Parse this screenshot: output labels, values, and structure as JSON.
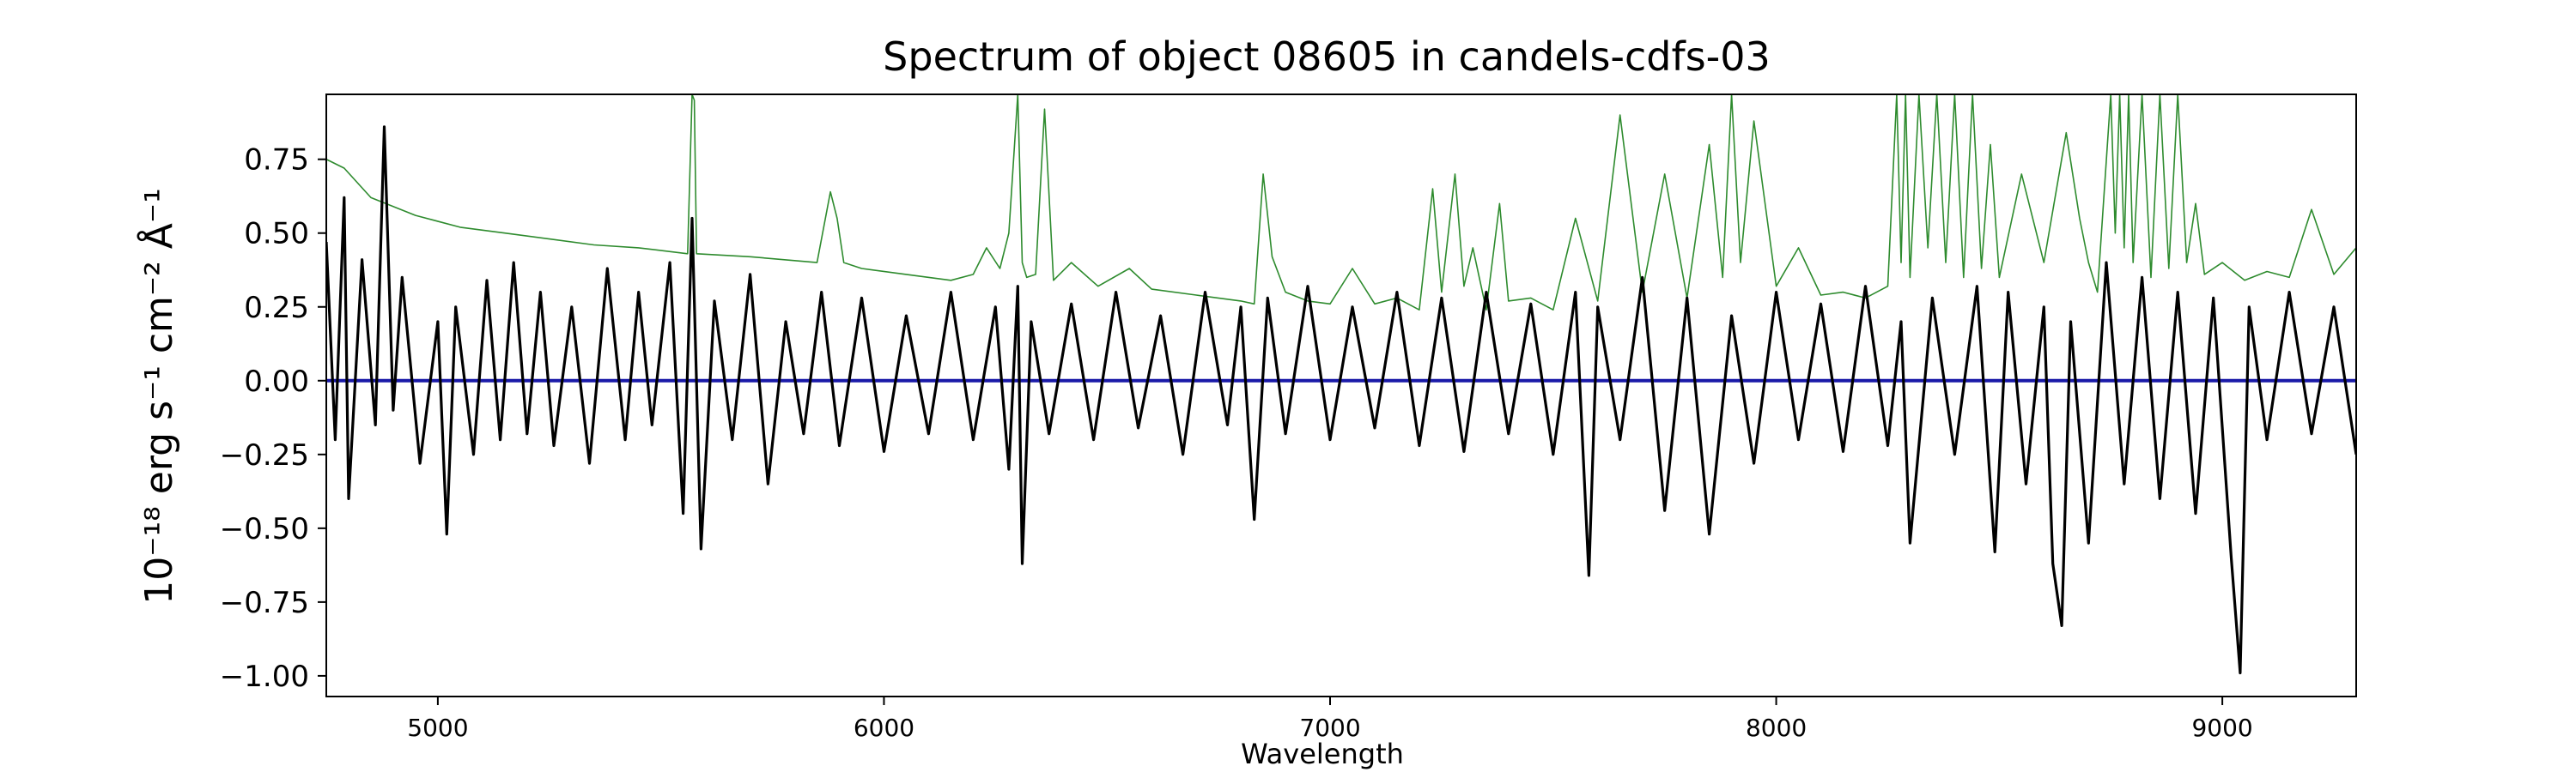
{
  "chart_data": {
    "type": "line",
    "title": "Spectrum of object 08605 in candels-cdfs-03",
    "xlabel": "Wavelength",
    "ylabel": "10⁻¹⁸ erg s⁻¹ cm⁻² Å⁻¹",
    "xlim": [
      4750,
      9300
    ],
    "ylim": [
      -1.07,
      0.97
    ],
    "x_ticks": [
      5000,
      6000,
      7000,
      8000,
      9000
    ],
    "y_ticks": [
      0.75,
      0.5,
      0.25,
      0.0,
      -0.25,
      -0.5,
      -0.75,
      -1.0
    ],
    "y_tick_labels": [
      "0.75",
      "0.50",
      "0.25",
      "0.00",
      "−0.25",
      "−0.50",
      "−0.75",
      "−1.00"
    ],
    "grid": false,
    "series": [
      {
        "color": "#2e8b2e",
        "role": "error",
        "x": [
          4750,
          4790,
          4850,
          4950,
          5050,
          5150,
          5250,
          5350,
          5450,
          5560,
          5570,
          5575,
          5580,
          5700,
          5850,
          5880,
          5895,
          5910,
          5950,
          6050,
          6150,
          6200,
          6230,
          6260,
          6280,
          6300,
          6310,
          6320,
          6340,
          6360,
          6380,
          6420,
          6480,
          6550,
          6600,
          6700,
          6800,
          6830,
          6850,
          6870,
          6900,
          6950,
          7000,
          7050,
          7100,
          7150,
          7200,
          7230,
          7250,
          7280,
          7300,
          7320,
          7350,
          7380,
          7400,
          7450,
          7500,
          7550,
          7600,
          7650,
          7700,
          7750,
          7800,
          7850,
          7880,
          7900,
          7920,
          7950,
          8000,
          8050,
          8100,
          8150,
          8200,
          8250,
          8270,
          8280,
          8290,
          8300,
          8320,
          8340,
          8360,
          8380,
          8400,
          8420,
          8440,
          8460,
          8480,
          8500,
          8550,
          8600,
          8650,
          8680,
          8700,
          8720,
          8750,
          8760,
          8770,
          8780,
          8790,
          8800,
          8820,
          8840,
          8860,
          8880,
          8900,
          8920,
          8940,
          8960,
          9000,
          9050,
          9100,
          9150,
          9200,
          9250,
          9300
        ],
        "y": [
          0.75,
          0.72,
          0.62,
          0.56,
          0.52,
          0.5,
          0.48,
          0.46,
          0.45,
          0.43,
          0.97,
          0.95,
          0.43,
          0.42,
          0.4,
          0.64,
          0.55,
          0.4,
          0.38,
          0.36,
          0.34,
          0.36,
          0.45,
          0.38,
          0.5,
          0.97,
          0.4,
          0.35,
          0.36,
          0.92,
          0.34,
          0.4,
          0.32,
          0.38,
          0.31,
          0.29,
          0.27,
          0.26,
          0.7,
          0.42,
          0.3,
          0.27,
          0.26,
          0.38,
          0.26,
          0.28,
          0.24,
          0.65,
          0.3,
          0.7,
          0.32,
          0.45,
          0.24,
          0.6,
          0.27,
          0.28,
          0.24,
          0.55,
          0.27,
          0.9,
          0.3,
          0.7,
          0.28,
          0.8,
          0.35,
          0.97,
          0.4,
          0.88,
          0.32,
          0.45,
          0.29,
          0.3,
          0.28,
          0.32,
          0.97,
          0.4,
          0.97,
          0.35,
          0.97,
          0.45,
          0.97,
          0.4,
          0.97,
          0.35,
          0.97,
          0.38,
          0.8,
          0.35,
          0.7,
          0.4,
          0.84,
          0.55,
          0.4,
          0.3,
          0.97,
          0.5,
          0.97,
          0.45,
          0.97,
          0.4,
          0.97,
          0.35,
          0.97,
          0.38,
          0.97,
          0.4,
          0.6,
          0.36,
          0.4,
          0.34,
          0.37,
          0.35,
          0.58,
          0.36,
          0.45
        ]
      },
      {
        "color": "#1a1aa8",
        "role": "model",
        "x": [
          4750,
          9300
        ],
        "y": [
          0.0,
          0.0
        ]
      },
      {
        "color": "#000000",
        "role": "flux",
        "x": [
          4750,
          4770,
          4790,
          4800,
          4830,
          4860,
          4880,
          4900,
          4920,
          4960,
          5000,
          5020,
          5040,
          5080,
          5110,
          5140,
          5170,
          5200,
          5230,
          5260,
          5300,
          5340,
          5380,
          5420,
          5450,
          5480,
          5520,
          5550,
          5570,
          5590,
          5620,
          5660,
          5700,
          5740,
          5780,
          5820,
          5860,
          5900,
          5950,
          6000,
          6050,
          6100,
          6150,
          6200,
          6250,
          6280,
          6300,
          6310,
          6330,
          6370,
          6420,
          6470,
          6520,
          6570,
          6620,
          6670,
          6720,
          6770,
          6800,
          6830,
          6860,
          6900,
          6950,
          7000,
          7050,
          7100,
          7150,
          7200,
          7250,
          7300,
          7350,
          7400,
          7450,
          7500,
          7550,
          7580,
          7600,
          7650,
          7700,
          7750,
          7800,
          7850,
          7900,
          7950,
          8000,
          8050,
          8100,
          8150,
          8200,
          8250,
          8280,
          8300,
          8350,
          8400,
          8450,
          8490,
          8520,
          8560,
          8600,
          8620,
          8640,
          8660,
          8700,
          8740,
          8780,
          8820,
          8860,
          8900,
          8940,
          8980,
          9020,
          9040,
          9060,
          9100,
          9150,
          9200,
          9250,
          9300
        ],
        "y": [
          0.47,
          -0.2,
          0.62,
          -0.4,
          0.41,
          -0.15,
          0.86,
          -0.1,
          0.35,
          -0.28,
          0.2,
          -0.52,
          0.25,
          -0.25,
          0.34,
          -0.2,
          0.4,
          -0.18,
          0.3,
          -0.22,
          0.25,
          -0.28,
          0.38,
          -0.2,
          0.3,
          -0.15,
          0.4,
          -0.45,
          0.55,
          -0.57,
          0.27,
          -0.2,
          0.36,
          -0.35,
          0.2,
          -0.18,
          0.3,
          -0.22,
          0.28,
          -0.24,
          0.22,
          -0.18,
          0.3,
          -0.2,
          0.25,
          -0.3,
          0.32,
          -0.62,
          0.2,
          -0.18,
          0.26,
          -0.2,
          0.3,
          -0.16,
          0.22,
          -0.25,
          0.3,
          -0.15,
          0.25,
          -0.47,
          0.28,
          -0.18,
          0.32,
          -0.2,
          0.25,
          -0.16,
          0.3,
          -0.22,
          0.28,
          -0.24,
          0.3,
          -0.18,
          0.26,
          -0.25,
          0.3,
          -0.66,
          0.25,
          -0.2,
          0.35,
          -0.44,
          0.28,
          -0.52,
          0.22,
          -0.28,
          0.3,
          -0.2,
          0.26,
          -0.24,
          0.32,
          -0.22,
          0.2,
          -0.55,
          0.28,
          -0.25,
          0.32,
          -0.58,
          0.3,
          -0.35,
          0.25,
          -0.62,
          -0.83,
          0.2,
          -0.55,
          0.4,
          -0.35,
          0.35,
          -0.4,
          0.3,
          -0.45,
          0.28,
          -0.6,
          -0.99,
          0.25,
          -0.2,
          0.3,
          -0.18,
          0.25,
          -0.25
        ]
      }
    ]
  }
}
